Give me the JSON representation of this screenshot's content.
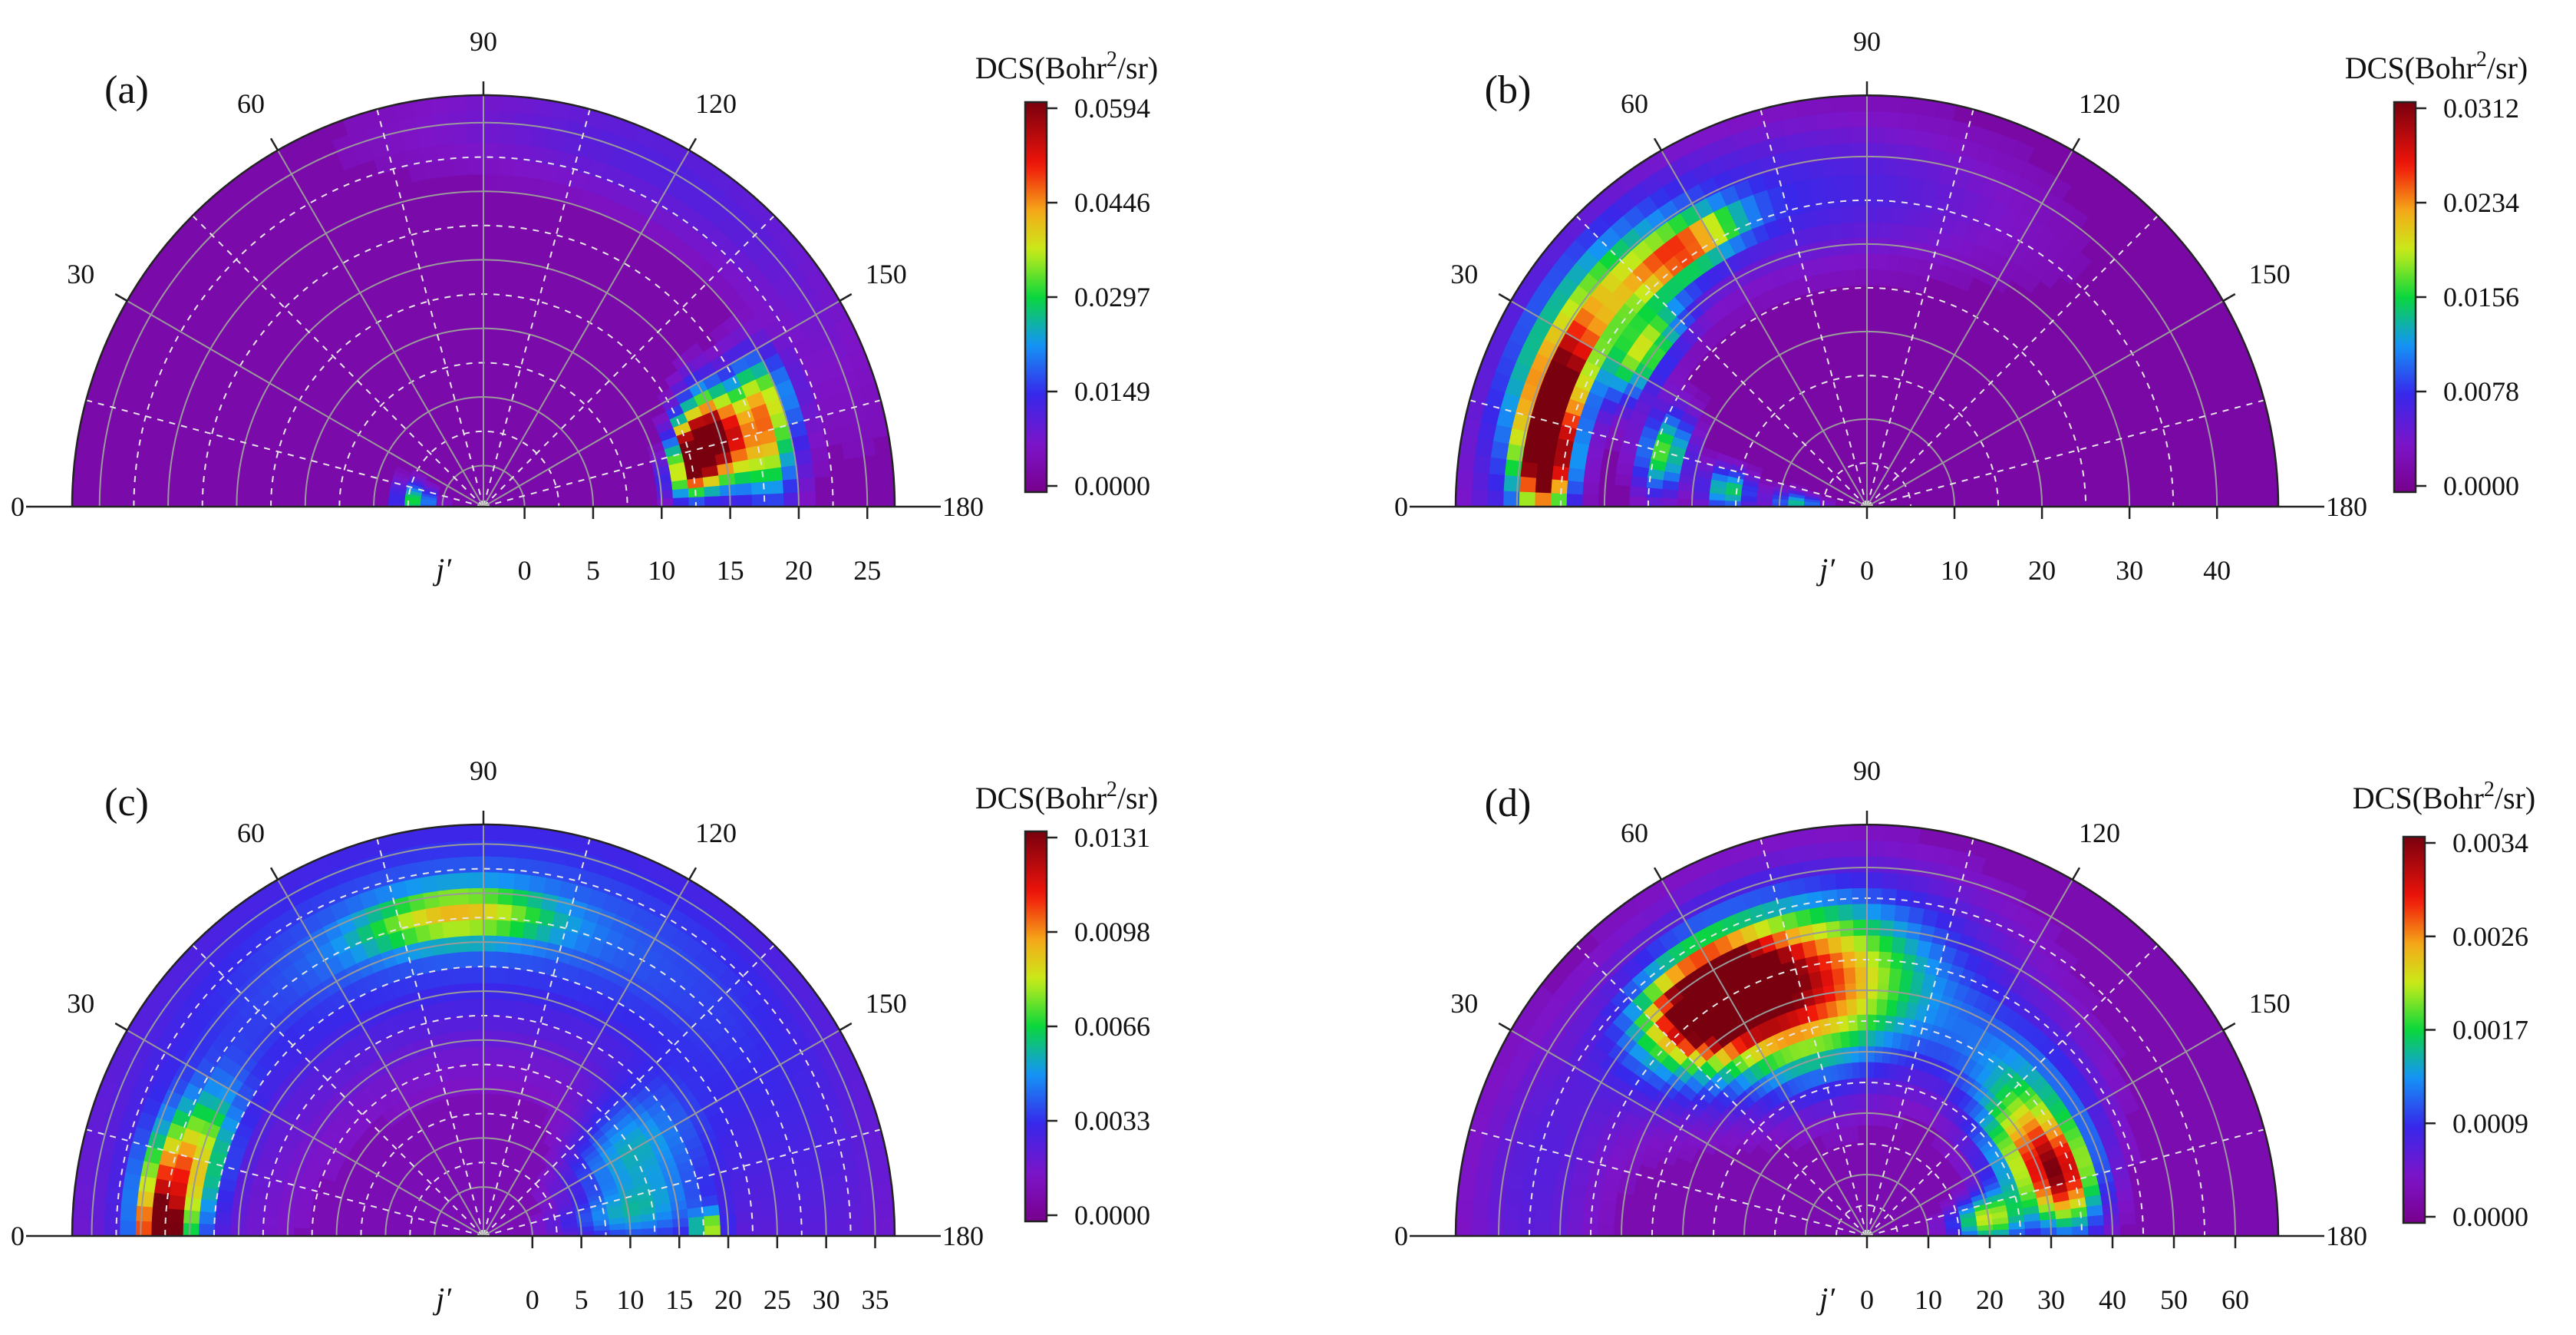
{
  "figure": {
    "common": {
      "angle_ticks": [
        0,
        30,
        60,
        90,
        120,
        150,
        180
      ],
      "colorbar_title_prefix": "DCS(Bohr",
      "colorbar_title_sup": "2",
      "colorbar_title_suffix": "/sr)",
      "radial_axis_label": "j′"
    }
  },
  "chart_data": [
    {
      "type": "heatmap",
      "subtype": "polar-half",
      "panel_label": "(a)",
      "radial_ticks": [
        0,
        5,
        10,
        15,
        20,
        25
      ],
      "radial_range": [
        -3,
        27
      ],
      "angle_range": [
        0,
        180
      ],
      "colorbar": {
        "min": 0,
        "max": 0.0594,
        "tick_labels": [
          "0.0594",
          "0.0446",
          "0.0297",
          "0.0149",
          "0.0000"
        ]
      },
      "background_level": 0.06,
      "hotspots": [
        {
          "r": 13,
          "theta": 165,
          "dr": 1.0,
          "dtheta": 6,
          "level": 0.95
        },
        {
          "r": 15,
          "theta": 163,
          "dr": 1.2,
          "dtheta": 8,
          "level": 0.85
        },
        {
          "r": 18,
          "theta": 168,
          "dr": 1.5,
          "dtheta": 8,
          "level": 0.55
        },
        {
          "r": 12,
          "theta": 172,
          "dr": 1.2,
          "dtheta": 5,
          "level": 0.45
        },
        {
          "r": 19,
          "theta": 158,
          "dr": 1.5,
          "dtheta": 6,
          "level": 0.4
        },
        {
          "r": 2,
          "theta": 5,
          "dr": 1.0,
          "dtheta": 10,
          "level": 0.45
        },
        {
          "r": 25,
          "theta": 120,
          "dr": 3.0,
          "dtheta": 30,
          "level": 0.14
        }
      ]
    },
    {
      "type": "heatmap",
      "subtype": "polar-half",
      "panel_label": "(b)",
      "radial_ticks": [
        0,
        10,
        20,
        30,
        40
      ],
      "radial_range": [
        0,
        47
      ],
      "angle_range": [
        0,
        180
      ],
      "colorbar": {
        "min": 0,
        "max": 0.0312,
        "tick_labels": [
          "0.0312",
          "0.0234",
          "0.0156",
          "0.0078",
          "0.0000"
        ]
      },
      "background_level": 0.05,
      "hotspots": [
        {
          "r": 37,
          "theta": 8,
          "dr": 2.2,
          "dtheta": 7,
          "level": 1.0
        },
        {
          "r": 38,
          "theta": 20,
          "dr": 2.2,
          "dtheta": 8,
          "level": 0.7
        },
        {
          "r": 38,
          "theta": 36,
          "dr": 3.0,
          "dtheta": 12,
          "level": 0.45
        },
        {
          "r": 36,
          "theta": 55,
          "dr": 2.0,
          "dtheta": 8,
          "level": 0.55
        },
        {
          "r": 31,
          "theta": 35,
          "dr": 2.0,
          "dtheta": 8,
          "level": 0.5
        },
        {
          "r": 24,
          "theta": 15,
          "dr": 2.0,
          "dtheta": 8,
          "level": 0.5
        },
        {
          "r": 16,
          "theta": 7,
          "dr": 2.0,
          "dtheta": 6,
          "level": 0.45
        },
        {
          "r": 8,
          "theta": 3,
          "dr": 2.0,
          "dtheta": 6,
          "level": 0.4
        },
        {
          "r": 36,
          "theta": 75,
          "dr": 6.0,
          "dtheta": 30,
          "level": 0.18
        },
        {
          "r": 43,
          "theta": 25,
          "dr": 3.0,
          "dtheta": 25,
          "level": 0.2
        }
      ]
    },
    {
      "type": "heatmap",
      "subtype": "polar-half",
      "panel_label": "(c)",
      "radial_ticks": [
        0,
        5,
        10,
        15,
        20,
        25,
        30,
        35
      ],
      "radial_range": [
        -5,
        37
      ],
      "angle_range": [
        0,
        180
      ],
      "colorbar": {
        "min": 0,
        "max": 0.0131,
        "tick_labels": [
          "0.0131",
          "0.0098",
          "0.0066",
          "0.0033",
          "0.0000"
        ]
      },
      "background_level": 0.08,
      "hotspots": [
        {
          "r": 28,
          "theta": 90,
          "dr": 9.0,
          "dtheta": 70,
          "level": 0.24
        },
        {
          "r": 28,
          "theta": 85,
          "dr": 2.0,
          "dtheta": 12,
          "level": 0.38
        },
        {
          "r": 28,
          "theta": 5,
          "dr": 2.0,
          "dtheta": 10,
          "level": 0.62
        },
        {
          "r": 28,
          "theta": 1,
          "dr": 1.0,
          "dtheta": 3,
          "level": 0.92
        },
        {
          "r": 25,
          "theta": 15,
          "dr": 2.0,
          "dtheta": 10,
          "level": 0.35
        },
        {
          "r": 12,
          "theta": 150,
          "dr": 5.0,
          "dtheta": 12,
          "level": 0.3
        },
        {
          "r": 10,
          "theta": 172,
          "dr": 5.0,
          "dtheta": 8,
          "level": 0.28
        },
        {
          "r": 18,
          "theta": 178,
          "dr": 1.0,
          "dtheta": 3,
          "level": 0.45
        }
      ]
    },
    {
      "type": "heatmap",
      "subtype": "polar-half",
      "panel_label": "(d)",
      "radial_ticks": [
        0,
        10,
        20,
        30,
        40,
        50,
        60
      ],
      "radial_range": [
        0,
        67
      ],
      "angle_range": [
        0,
        180
      ],
      "colorbar": {
        "min": 0,
        "max": 0.0034,
        "tick_labels": [
          "0.0034",
          "0.0026",
          "0.0017",
          "0.0009",
          "0.0000"
        ]
      },
      "background_level": 0.07,
      "hotspots": [
        {
          "r": 46,
          "theta": 57,
          "dr": 5.0,
          "dtheta": 9,
          "level": 0.95
        },
        {
          "r": 42,
          "theta": 70,
          "dr": 9.0,
          "dtheta": 18,
          "level": 0.55
        },
        {
          "r": 42,
          "theta": 80,
          "dr": 11.0,
          "dtheta": 25,
          "level": 0.32
        },
        {
          "r": 33,
          "theta": 165,
          "dr": 4.0,
          "dtheta": 10,
          "level": 0.65
        },
        {
          "r": 30,
          "theta": 150,
          "dr": 5.0,
          "dtheta": 12,
          "level": 0.42
        },
        {
          "r": 35,
          "theta": 135,
          "dr": 7.0,
          "dtheta": 18,
          "level": 0.26
        },
        {
          "r": 20,
          "theta": 172,
          "dr": 4.0,
          "dtheta": 8,
          "level": 0.55
        },
        {
          "r": 55,
          "theta": 10,
          "dr": 8.0,
          "dtheta": 20,
          "level": 0.12
        }
      ]
    }
  ]
}
